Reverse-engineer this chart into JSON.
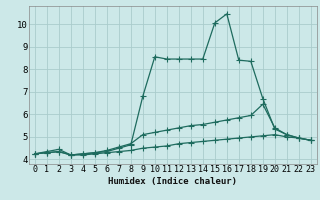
{
  "xlabel": "Humidex (Indice chaleur)",
  "xlim": [
    -0.5,
    23.5
  ],
  "ylim": [
    3.8,
    10.8
  ],
  "yticks": [
    4,
    5,
    6,
    7,
    8,
    9,
    10
  ],
  "xticks": [
    0,
    1,
    2,
    3,
    4,
    5,
    6,
    7,
    8,
    9,
    10,
    11,
    12,
    13,
    14,
    15,
    16,
    17,
    18,
    19,
    20,
    21,
    22,
    23
  ],
  "bg_color": "#cce8e8",
  "grid_color": "#aacccc",
  "line_color": "#1e6b5e",
  "line1_x": [
    0,
    1,
    2,
    3,
    4,
    5,
    6,
    7,
    8,
    9,
    10,
    11,
    12,
    13,
    14,
    15,
    16,
    17,
    18,
    19,
    20,
    21,
    22,
    23
  ],
  "line1_y": [
    4.25,
    4.35,
    4.45,
    4.2,
    4.25,
    4.3,
    4.35,
    4.5,
    4.65,
    6.8,
    8.55,
    8.45,
    8.45,
    8.45,
    8.45,
    10.05,
    10.45,
    8.4,
    8.35,
    6.7,
    5.35,
    5.1,
    4.95,
    4.85
  ],
  "line2_x": [
    0,
    1,
    2,
    3,
    4,
    5,
    6,
    7,
    8,
    9,
    10,
    11,
    12,
    13,
    14,
    15,
    16,
    17,
    18,
    19,
    20,
    21,
    22,
    23
  ],
  "line2_y": [
    4.25,
    4.3,
    4.35,
    4.2,
    4.25,
    4.3,
    4.4,
    4.55,
    4.7,
    5.1,
    5.2,
    5.3,
    5.4,
    5.5,
    5.55,
    5.65,
    5.75,
    5.85,
    5.95,
    6.45,
    5.4,
    5.1,
    4.95,
    4.85
  ],
  "line3_x": [
    0,
    1,
    2,
    3,
    4,
    5,
    6,
    7,
    8,
    9,
    10,
    11,
    12,
    13,
    14,
    15,
    16,
    17,
    18,
    19,
    20,
    21,
    22,
    23
  ],
  "line3_y": [
    4.25,
    4.3,
    4.35,
    4.2,
    4.2,
    4.25,
    4.3,
    4.35,
    4.4,
    4.5,
    4.55,
    4.6,
    4.7,
    4.75,
    4.8,
    4.85,
    4.9,
    4.95,
    5.0,
    5.05,
    5.1,
    5.0,
    4.95,
    4.85
  ],
  "marker_size": 2.0,
  "line_width": 0.9,
  "xlabel_fontsize": 6.5,
  "tick_fontsize": 6.0
}
